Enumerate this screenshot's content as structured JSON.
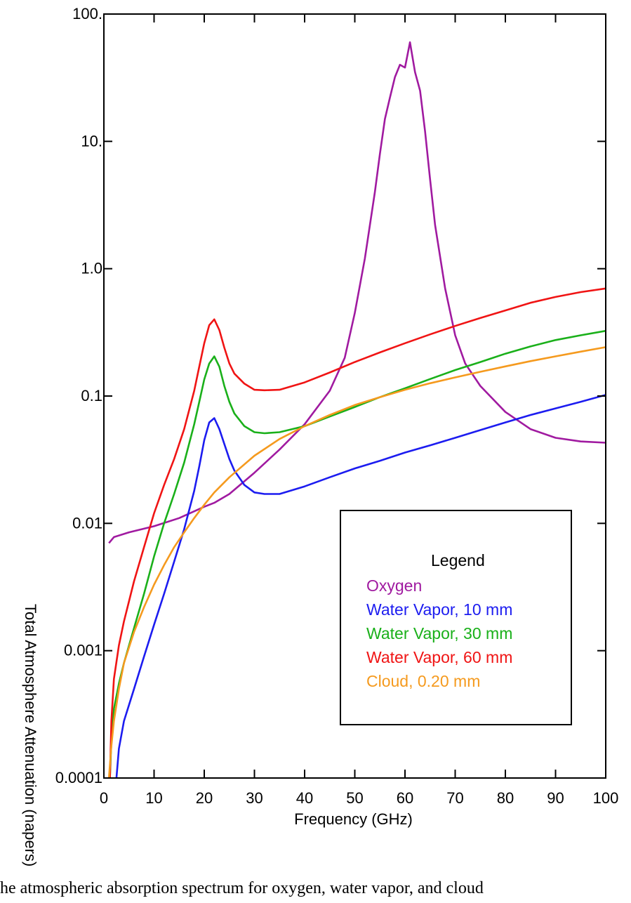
{
  "caption": "he atmospheric absorption spectrum for oxygen, water vapor, and cloud",
  "chart_data": {
    "type": "line",
    "title": "",
    "xlabel": "Frequency (GHz)",
    "ylabel": "Total Atmosphere Attenuation (napers)",
    "xlim": [
      0,
      100
    ],
    "ylim": [
      0.0001,
      100
    ],
    "yscale": "log",
    "grid": false,
    "legend_position": "lower-right",
    "x_ticks": [
      0,
      10,
      20,
      30,
      40,
      50,
      60,
      70,
      80,
      90,
      100
    ],
    "x_tick_labels": [
      "0",
      "10",
      "20",
      "30",
      "40",
      "50",
      "60",
      "70",
      "80",
      "90",
      "100"
    ],
    "y_ticks": [
      0.0001,
      0.001,
      0.01,
      0.1,
      1,
      10,
      100
    ],
    "y_tick_labels": [
      "0.0001",
      "0.001",
      "0.01",
      "0.1",
      "1.0",
      "10.",
      "100."
    ],
    "legend_title": "Legend",
    "series": [
      {
        "name": "Oxygen",
        "color": "#a01aa0",
        "x": [
          1,
          2,
          5,
          10,
          15,
          20,
          22,
          25,
          30,
          35,
          40,
          45,
          48,
          50,
          52,
          54,
          55,
          56,
          57,
          58,
          59,
          60,
          61,
          62,
          63,
          64,
          65,
          66,
          68,
          70,
          72,
          75,
          80,
          85,
          90,
          95,
          100
        ],
        "y": [
          0.007,
          0.0078,
          0.0085,
          0.0095,
          0.011,
          0.0135,
          0.0145,
          0.017,
          0.025,
          0.038,
          0.06,
          0.11,
          0.2,
          0.45,
          1.2,
          4,
          8,
          15,
          22,
          32,
          40,
          38,
          60,
          35,
          25,
          12,
          5,
          2.2,
          0.7,
          0.3,
          0.18,
          0.12,
          0.075,
          0.055,
          0.047,
          0.044,
          0.043
        ]
      },
      {
        "name": "Water Vapor, 10 mm",
        "color": "#1c1cf0",
        "x": [
          2.5,
          3,
          4,
          6,
          8,
          10,
          12,
          14,
          16,
          18,
          19,
          20,
          21,
          22,
          23,
          24,
          25,
          26,
          28,
          30,
          32,
          35,
          40,
          45,
          50,
          55,
          60,
          65,
          70,
          75,
          80,
          85,
          90,
          95,
          100
        ],
        "y": [
          0.0001,
          0.00017,
          0.00028,
          0.0005,
          0.0009,
          0.0016,
          0.0028,
          0.005,
          0.009,
          0.018,
          0.028,
          0.045,
          0.062,
          0.067,
          0.055,
          0.042,
          0.032,
          0.026,
          0.02,
          0.0175,
          0.017,
          0.017,
          0.0195,
          0.023,
          0.027,
          0.031,
          0.036,
          0.041,
          0.047,
          0.054,
          0.062,
          0.071,
          0.08,
          0.09,
          0.102
        ]
      },
      {
        "name": "Water Vapor, 30 mm",
        "color": "#1ab01a",
        "x": [
          1.2,
          1.5,
          2,
          3,
          4,
          6,
          8,
          10,
          12,
          14,
          16,
          18,
          19,
          20,
          21,
          22,
          23,
          24,
          25,
          26,
          28,
          30,
          32,
          35,
          40,
          45,
          50,
          55,
          60,
          65,
          70,
          75,
          80,
          85,
          90,
          95,
          100
        ],
        "y": [
          0.0001,
          0.0002,
          0.00035,
          0.00055,
          0.0008,
          0.0015,
          0.0028,
          0.0055,
          0.01,
          0.017,
          0.03,
          0.06,
          0.09,
          0.135,
          0.18,
          0.205,
          0.17,
          0.12,
          0.09,
          0.073,
          0.058,
          0.052,
          0.051,
          0.052,
          0.058,
          0.069,
          0.082,
          0.098,
          0.115,
          0.136,
          0.16,
          0.185,
          0.215,
          0.245,
          0.275,
          0.3,
          0.325
        ]
      },
      {
        "name": "Water Vapor, 60 mm",
        "color": "#f01414",
        "x": [
          1.2,
          1.5,
          2,
          3,
          4,
          6,
          8,
          10,
          12,
          14,
          16,
          18,
          19,
          20,
          21,
          22,
          23,
          24,
          25,
          26,
          28,
          30,
          32,
          35,
          40,
          45,
          50,
          55,
          60,
          65,
          70,
          75,
          80,
          85,
          90,
          95,
          100
        ],
        "y": [
          0.0001,
          0.00028,
          0.0006,
          0.0011,
          0.0017,
          0.0035,
          0.0065,
          0.012,
          0.02,
          0.032,
          0.055,
          0.11,
          0.17,
          0.26,
          0.36,
          0.4,
          0.33,
          0.24,
          0.18,
          0.15,
          0.125,
          0.112,
          0.111,
          0.112,
          0.128,
          0.153,
          0.185,
          0.22,
          0.26,
          0.305,
          0.355,
          0.41,
          0.47,
          0.54,
          0.6,
          0.655,
          0.7
        ]
      },
      {
        "name": "Cloud, 0.20 mm",
        "color": "#f59a1e",
        "x": [
          1,
          1.5,
          2,
          3,
          4,
          6,
          8,
          10,
          12,
          14,
          16,
          18,
          20,
          22,
          25,
          30,
          35,
          40,
          45,
          50,
          55,
          60,
          65,
          70,
          75,
          80,
          85,
          90,
          95,
          100
        ],
        "y": [
          0.0001,
          0.00018,
          0.00028,
          0.0005,
          0.0008,
          0.0014,
          0.0022,
          0.0033,
          0.0047,
          0.0065,
          0.0085,
          0.011,
          0.014,
          0.0175,
          0.023,
          0.034,
          0.046,
          0.058,
          0.071,
          0.085,
          0.098,
          0.112,
          0.126,
          0.14,
          0.155,
          0.171,
          0.188,
          0.205,
          0.223,
          0.242
        ]
      }
    ]
  }
}
